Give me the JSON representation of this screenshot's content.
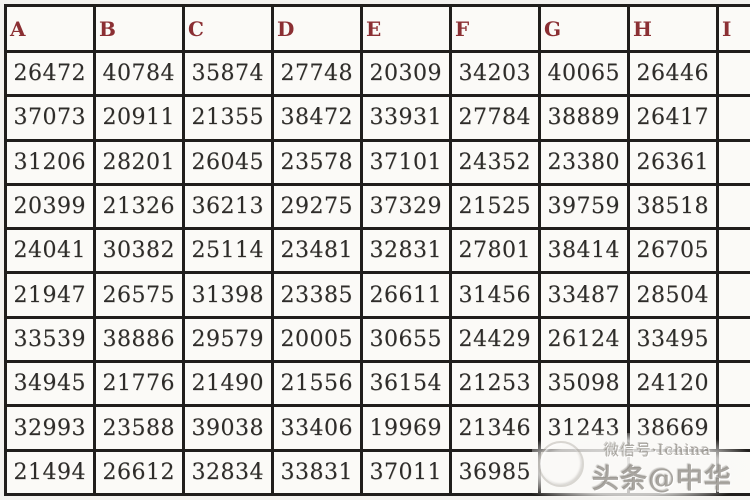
{
  "table": {
    "headers": [
      "A",
      "B",
      "C",
      "D",
      "E",
      "F",
      "G",
      "H",
      "I"
    ],
    "rows": [
      [
        "26472",
        "40784",
        "35874",
        "27748",
        "20309",
        "34203",
        "40065",
        "26446",
        ""
      ],
      [
        "37073",
        "20911",
        "21355",
        "38472",
        "33931",
        "27784",
        "38889",
        "26417",
        ""
      ],
      [
        "31206",
        "28201",
        "26045",
        "23578",
        "37101",
        "24352",
        "23380",
        "26361",
        ""
      ],
      [
        "20399",
        "21326",
        "36213",
        "29275",
        "37329",
        "21525",
        "39759",
        "38518",
        ""
      ],
      [
        "24041",
        "30382",
        "25114",
        "23481",
        "32831",
        "27801",
        "38414",
        "26705",
        ""
      ],
      [
        "21947",
        "26575",
        "31398",
        "23385",
        "26611",
        "31456",
        "33487",
        "28504",
        ""
      ],
      [
        "33539",
        "38886",
        "29579",
        "20005",
        "30655",
        "24429",
        "26124",
        "33495",
        ""
      ],
      [
        "34945",
        "21776",
        "21490",
        "21556",
        "36154",
        "21253",
        "35098",
        "24120",
        ""
      ],
      [
        "32993",
        "23588",
        "39038",
        "33406",
        "19969",
        "21346",
        "31243",
        "38669",
        ""
      ],
      [
        "21494",
        "26612",
        "32834",
        "33831",
        "37011",
        "36985",
        "",
        "",
        ""
      ]
    ]
  },
  "watermark": {
    "line1": "微信号·Ichina",
    "line2": "头条@中华"
  },
  "colors": {
    "background": "#f3f2ef",
    "grid_line": "#201e1c",
    "cell_background": "#fbfaf7",
    "header_text": "#8b2f33",
    "cell_text": "#2e2c29",
    "watermark_text": "#94908a"
  }
}
